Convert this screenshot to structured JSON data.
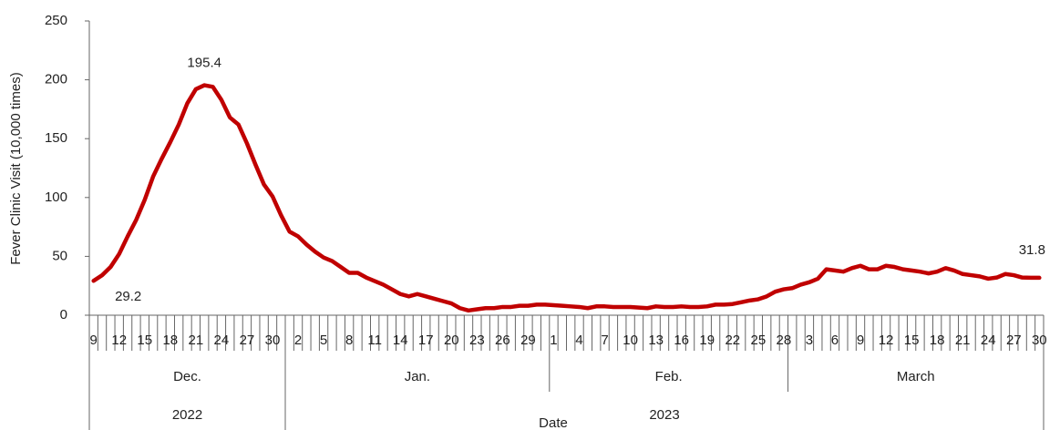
{
  "chart_data": {
    "type": "line",
    "x_label": "Date",
    "y_label": "Fever Clinic Visit (10,000 times)",
    "x": [
      "2022-12-09",
      "2022-12-10",
      "2022-12-11",
      "2022-12-12",
      "2022-12-13",
      "2022-12-14",
      "2022-12-15",
      "2022-12-16",
      "2022-12-17",
      "2022-12-18",
      "2022-12-19",
      "2022-12-20",
      "2022-12-21",
      "2022-12-22",
      "2022-12-23",
      "2022-12-24",
      "2022-12-25",
      "2022-12-26",
      "2022-12-27",
      "2022-12-28",
      "2022-12-29",
      "2022-12-30",
      "2022-12-31",
      "2023-01-01",
      "2023-01-02",
      "2023-01-03",
      "2023-01-04",
      "2023-01-05",
      "2023-01-06",
      "2023-01-07",
      "2023-01-08",
      "2023-01-09",
      "2023-01-10",
      "2023-01-11",
      "2023-01-12",
      "2023-01-13",
      "2023-01-14",
      "2023-01-15",
      "2023-01-16",
      "2023-01-17",
      "2023-01-18",
      "2023-01-19",
      "2023-01-20",
      "2023-01-21",
      "2023-01-22",
      "2023-01-23",
      "2023-01-24",
      "2023-01-25",
      "2023-01-26",
      "2023-01-27",
      "2023-01-28",
      "2023-01-29",
      "2023-01-30",
      "2023-01-31",
      "2023-02-01",
      "2023-02-02",
      "2023-02-03",
      "2023-02-04",
      "2023-02-05",
      "2023-02-06",
      "2023-02-07",
      "2023-02-08",
      "2023-02-09",
      "2023-02-10",
      "2023-02-11",
      "2023-02-12",
      "2023-02-13",
      "2023-02-14",
      "2023-02-15",
      "2023-02-16",
      "2023-02-17",
      "2023-02-18",
      "2023-02-19",
      "2023-02-20",
      "2023-02-21",
      "2023-02-22",
      "2023-02-23",
      "2023-02-24",
      "2023-02-25",
      "2023-02-26",
      "2023-02-27",
      "2023-02-28",
      "2023-03-01",
      "2023-03-02",
      "2023-03-03",
      "2023-03-04",
      "2023-03-05",
      "2023-03-06",
      "2023-03-07",
      "2023-03-08",
      "2023-03-09",
      "2023-03-10",
      "2023-03-11",
      "2023-03-12",
      "2023-03-13",
      "2023-03-14",
      "2023-03-15",
      "2023-03-16",
      "2023-03-17",
      "2023-03-18",
      "2023-03-19",
      "2023-03-20",
      "2023-03-21",
      "2023-03-22",
      "2023-03-23",
      "2023-03-24",
      "2023-03-25",
      "2023-03-26",
      "2023-03-27",
      "2023-03-28",
      "2023-03-29",
      "2023-03-30"
    ],
    "categories": [
      9,
      null,
      null,
      12,
      null,
      null,
      15,
      null,
      null,
      18,
      null,
      null,
      21,
      null,
      null,
      24,
      null,
      null,
      27,
      null,
      null,
      30,
      null,
      null,
      2,
      null,
      null,
      5,
      null,
      null,
      8,
      null,
      null,
      11,
      null,
      null,
      14,
      null,
      null,
      17,
      null,
      null,
      20,
      null,
      null,
      23,
      null,
      null,
      26,
      null,
      null,
      29,
      null,
      null,
      1,
      null,
      null,
      4,
      null,
      null,
      7,
      null,
      null,
      10,
      null,
      null,
      13,
      null,
      null,
      16,
      null,
      null,
      19,
      null,
      null,
      22,
      null,
      null,
      25,
      null,
      null,
      28,
      null,
      null,
      3,
      null,
      null,
      6,
      null,
      null,
      9,
      null,
      null,
      12,
      null,
      null,
      15,
      null,
      null,
      18,
      null,
      null,
      21,
      null,
      null,
      24,
      null,
      null,
      27,
      null,
      null,
      30
    ],
    "month_labels": [
      "Dec.",
      "Jan.",
      "Feb.",
      "March"
    ],
    "year_labels": [
      "2022",
      "2023"
    ],
    "values": [
      29.2,
      34,
      41,
      52,
      67,
      81,
      98,
      118,
      133,
      147,
      162,
      180,
      192,
      195.4,
      194,
      183,
      168,
      162,
      146,
      128,
      111,
      101,
      85,
      71,
      67,
      60,
      54,
      49,
      46,
      41,
      36,
      36,
      32,
      29,
      26,
      22,
      18,
      16,
      18,
      16,
      14,
      12,
      10,
      6,
      4,
      5,
      6,
      6,
      7,
      7,
      8,
      8,
      9,
      9,
      8.5,
      8,
      7.5,
      7,
      6,
      7.5,
      7.5,
      7,
      7,
      7,
      6.5,
      6,
      7.5,
      7,
      7,
      7.5,
      7,
      7,
      7.5,
      9,
      9,
      9.5,
      11,
      12.5,
      13.5,
      16,
      20,
      22,
      23,
      26,
      28,
      31,
      39,
      38,
      37,
      40,
      42,
      39,
      39,
      42,
      41,
      39,
      38,
      37,
      35.5,
      37,
      40,
      38,
      35,
      34,
      33,
      31,
      32,
      35,
      34,
      32,
      31.8,
      31.8
    ],
    "value_labels": [
      "29.2",
      null,
      null,
      null,
      null,
      null,
      null,
      null,
      null,
      null,
      null,
      null,
      null,
      "195.4",
      null,
      null,
      null,
      null,
      null,
      null,
      null,
      null,
      null,
      null,
      null,
      null,
      null,
      null,
      null,
      null,
      null,
      null,
      null,
      null,
      null,
      null,
      null,
      null,
      null,
      null,
      null,
      null,
      null,
      null,
      null,
      null,
      null,
      null,
      null,
      null,
      null,
      null,
      null,
      null,
      null,
      null,
      null,
      null,
      null,
      null,
      null,
      null,
      null,
      null,
      null,
      null,
      null,
      null,
      null,
      null,
      null,
      null,
      null,
      null,
      null,
      null,
      null,
      null,
      null,
      null,
      null,
      null,
      null,
      null,
      null,
      null,
      null,
      null,
      null,
      null,
      null,
      null,
      null,
      null,
      null,
      null,
      null,
      null,
      null,
      null,
      null,
      null,
      null,
      null,
      null,
      null,
      null,
      null,
      null,
      null,
      null,
      "31.8"
    ],
    "color": "#c00000",
    "ylim": [
      0,
      250
    ],
    "yticks": [
      0,
      50,
      100,
      150,
      200,
      250
    ]
  }
}
